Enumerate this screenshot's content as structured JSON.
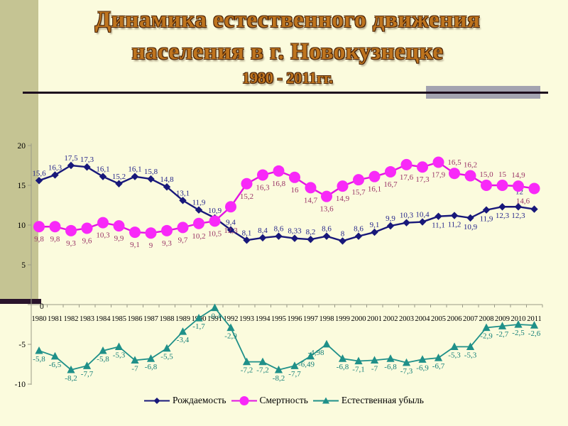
{
  "slide": {
    "title_line1": "Динамика естественного движения",
    "title_line2": "населения в г. Новокузнецке",
    "subtitle": "1980 - 2011гг."
  },
  "palette": {
    "background": "#FBFBDD",
    "left_stripe": "#C5C493",
    "stripe_footer_bar": "#2A142B",
    "title_text": "#BE741E",
    "title_rule": "#1D0C1E",
    "accent_bar": "#A3A3B0",
    "axis": "#9B9B88"
  },
  "chart_data": {
    "type": "line",
    "title": "",
    "xlabel": "",
    "ylabel": "",
    "x": [
      "1980",
      "1981",
      "1982",
      "1983",
      "1984",
      "1985",
      "1986",
      "1987",
      "1988",
      "1989",
      "1990",
      "1991",
      "1992",
      "1993",
      "1994",
      "1995",
      "1996",
      "1997",
      "1998",
      "1999",
      "2000",
      "2001",
      "2002",
      "2003",
      "2004",
      "2005",
      "2006",
      "2007",
      "2008",
      "2009",
      "2010",
      "2011"
    ],
    "ylim": [
      -10,
      20
    ],
    "yticks": [
      20,
      15,
      10,
      5,
      0,
      -5,
      -10
    ],
    "grid": false,
    "legend_position": "bottom",
    "series": [
      {
        "key": "birth-rate",
        "name": "Рождаемость",
        "marker": "diamond",
        "color": "#18187A",
        "line_color": "#18187A",
        "label_color": "#26268C",
        "values": [
          15.6,
          16.3,
          17.5,
          17.3,
          16.1,
          15.2,
          16.1,
          15.8,
          14.8,
          13.1,
          11.9,
          10.9,
          9.4,
          8.1,
          8.4,
          8.6,
          8.33,
          8.2,
          8.6,
          8,
          8.6,
          9.1,
          9.9,
          10.3,
          10.4,
          11.1,
          11.2,
          10.9,
          11.9,
          12.3,
          12.3,
          12
        ],
        "labels": [
          "15,6",
          "16,3",
          "17,5",
          "17,3",
          "16,1",
          "15,2",
          "16,1",
          "15,8",
          "14,8",
          "13,1",
          "11,9",
          "10,9",
          "9,4",
          "8,1",
          "8,4",
          "8,6",
          "8,33",
          "8,2",
          "8,6",
          "8",
          "8,6",
          "9,1",
          "9,9",
          "10,3",
          "10,4",
          "11,1",
          "11,2",
          "10,9",
          "11,9",
          "12,3",
          "12,3",
          "12"
        ],
        "label_side": "aaaaaaaaaaaaaaaaaaaaaaaaabbbbbba",
        "label_dx": {
          "31": -21
        },
        "label_dy": {
          "31": -14
        }
      },
      {
        "key": "death-rate",
        "name": "Смертность",
        "marker": "circle",
        "color": "#F829F8",
        "line_color": "#E313E3",
        "label_color": "#993366",
        "values": [
          9.8,
          9.8,
          9.3,
          9.6,
          10.3,
          9.9,
          9.1,
          9,
          9.3,
          9.7,
          10.2,
          10.5,
          12.3,
          15.2,
          16.3,
          16.8,
          16,
          14.7,
          13.6,
          14.9,
          15.7,
          16.1,
          16.7,
          17.6,
          17.3,
          17.9,
          16.5,
          16.2,
          15,
          15,
          14.9,
          14.6
        ],
        "labels": [
          "9,8",
          "9,8",
          "9,3",
          "9,6",
          "10,3",
          "9,9",
          "9,1",
          "9",
          "9,3",
          "9,7",
          "10,2",
          "10,5",
          "12,3",
          "15,2",
          "16,3",
          "16,8",
          "16",
          "14,7",
          "13,6",
          "14,9",
          "15,7",
          "16,1",
          "16,7",
          "17,6",
          "17,3",
          "17,9",
          "16,5",
          "16,2",
          "15,0",
          "15",
          "14,9",
          "14,6"
        ],
        "label_side": "bbbbbbbbbbbbbbbbbbbbbbbbbbaaaaab",
        "label_dx": {
          "31": -16
        },
        "label_dy": {
          "12": 16
        }
      },
      {
        "key": "natural-decline",
        "name": "Естественная убыль",
        "marker": "triangle",
        "color": "#1F9089",
        "line_color": "#1F9089",
        "label_color": "#168078",
        "values": [
          -5.8,
          -6.5,
          -8.2,
          -7.7,
          -5.8,
          -5.3,
          -7,
          -6.8,
          -5.5,
          -3.4,
          -1.7,
          -0.4,
          -2.9,
          -7.2,
          -7.2,
          -8.2,
          -7.7,
          -6.49,
          -4.98,
          -6.8,
          -7.1,
          -7,
          -6.8,
          -7.3,
          -6.9,
          -6.7,
          -5.3,
          -5.3,
          -2.9,
          -2.7,
          -2.5,
          -2.6
        ],
        "labels": [
          "-5,8",
          "-6,5",
          "-8,2",
          "-7,7",
          "-5,8",
          "-5,3",
          "-7",
          "-6,8",
          "-5,5",
          "-3,4",
          "-1,7",
          "-0,4",
          "-2,9",
          "-7,2",
          "-7,2",
          "-8,2",
          "-7,7",
          "-6,49",
          "-4,98",
          "-6,8",
          "-7,1",
          "-7",
          "-6,8",
          "-7,3",
          "-6,9",
          "-6,7",
          "-5,3",
          "-5,3",
          "-2,9",
          "-2,7",
          "-2,5",
          "-2,6"
        ],
        "label_side": "bbbbbbbbbbbbbbbbbbbbbbbbbbbbbbbb",
        "label_dx": {
          "17": -6,
          "18": -15
        },
        "label_dy": {}
      }
    ]
  }
}
